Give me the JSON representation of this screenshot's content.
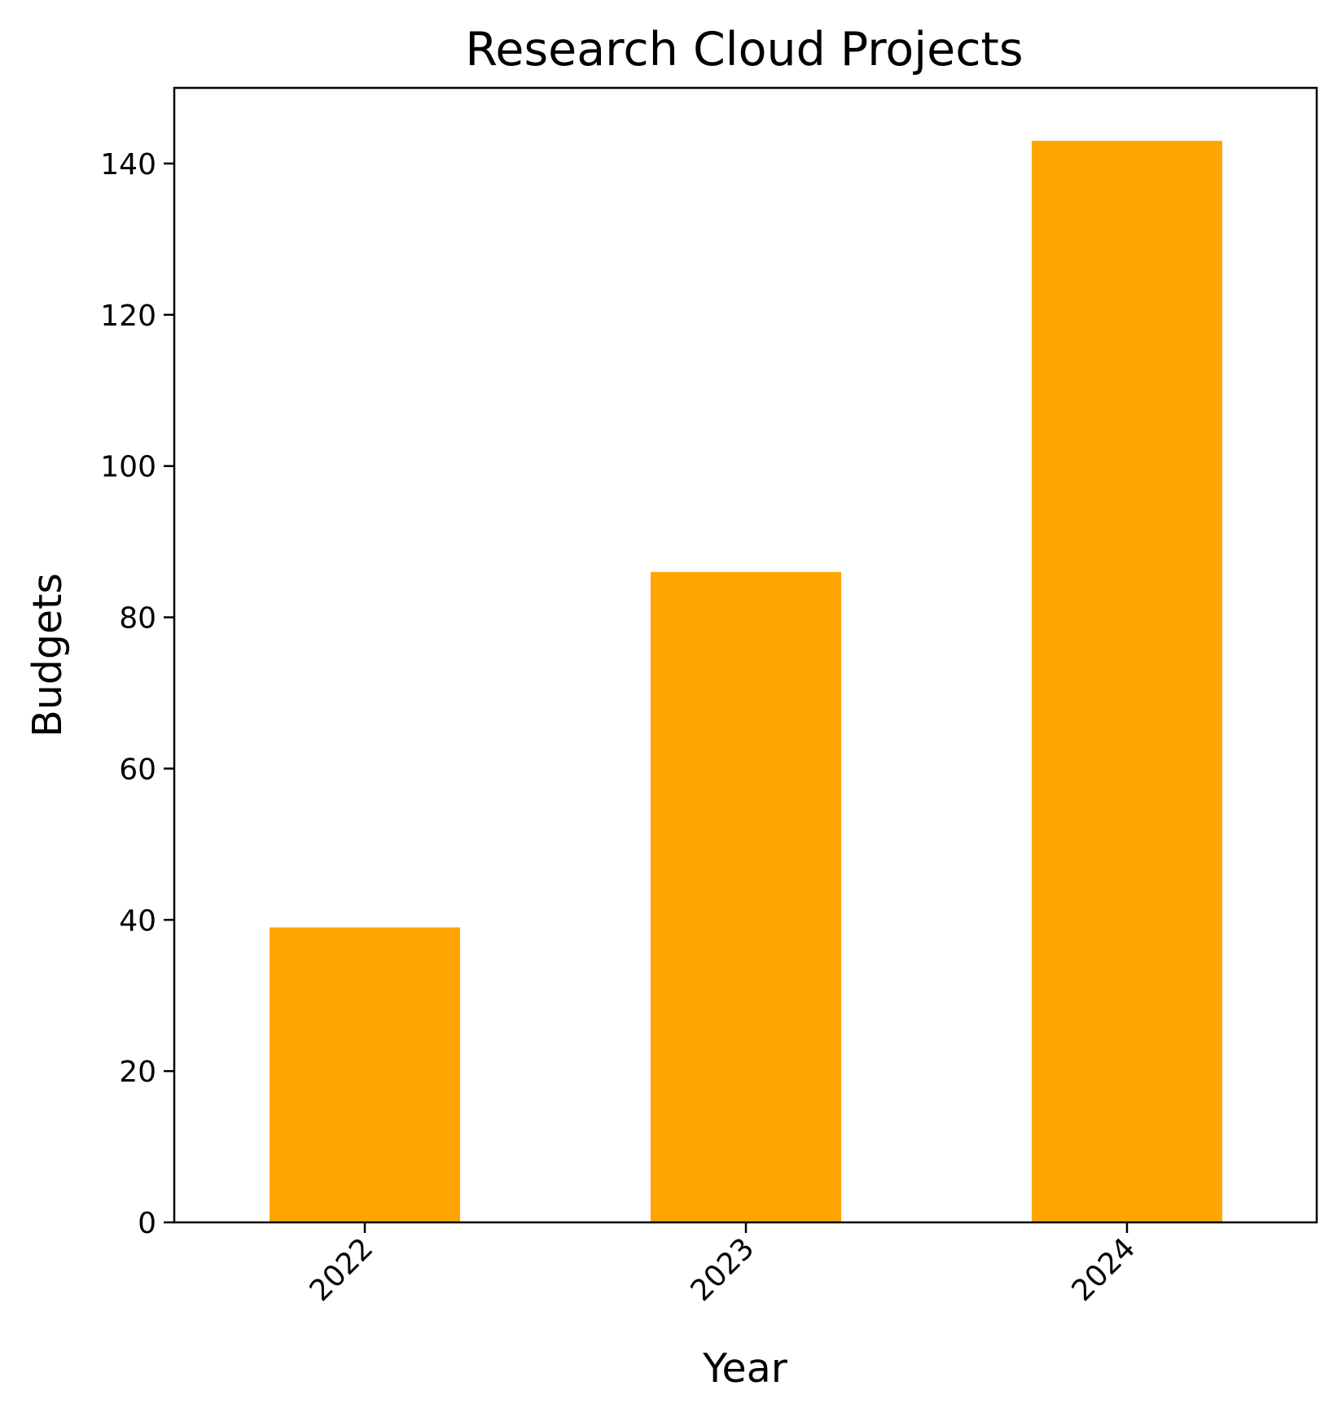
{
  "chart_data": {
    "type": "bar",
    "title": "Research Cloud Projects",
    "xlabel": "Year",
    "ylabel": "Budgets",
    "categories": [
      "2022",
      "2023",
      "2024"
    ],
    "values": [
      39,
      86,
      143
    ],
    "ylim": [
      0,
      150
    ],
    "yticks": [
      "0",
      "20",
      "40",
      "60",
      "80",
      "100",
      "120",
      "140"
    ],
    "bar_color": "#ffa500",
    "grid": false,
    "legend": "none"
  }
}
